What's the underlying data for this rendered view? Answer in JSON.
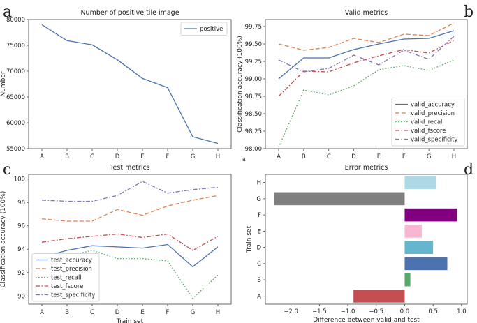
{
  "panel_letters": [
    "a",
    "b",
    "c",
    "d"
  ],
  "stray_mark": "a",
  "colors": {
    "blue": "#4a72b0",
    "orange": "#dd8452",
    "green": "#55a868",
    "red": "#c44e52",
    "purple": "#8172b3",
    "axis": "#444444"
  },
  "chart_data": [
    {
      "id": "a",
      "type": "line",
      "title": "Number of positive tile image",
      "xlabel": "",
      "ylabel": "Number",
      "categories": [
        "A",
        "B",
        "C",
        "D",
        "E",
        "F",
        "G",
        "H"
      ],
      "ylim": [
        55000,
        80000
      ],
      "yticks": [
        55000,
        60000,
        65000,
        70000,
        75000,
        80000
      ],
      "ytick_labels": [
        "55000",
        "60000",
        "65000",
        "70000",
        "75000",
        "80000"
      ],
      "legend_position": "top-right",
      "series": [
        {
          "name": "positive",
          "color": "#4a72b0",
          "dash": "solid",
          "values": [
            79000,
            75900,
            75100,
            72200,
            68600,
            66800,
            57300,
            56000
          ]
        }
      ]
    },
    {
      "id": "b",
      "type": "line",
      "title": "Valid metrics",
      "xlabel": "",
      "ylabel": "Classification accuracy (100%)",
      "categories": [
        "A",
        "B",
        "C",
        "D",
        "E",
        "F",
        "G",
        "H"
      ],
      "ylim": [
        98.0,
        99.85
      ],
      "yticks": [
        98.0,
        98.25,
        98.5,
        98.75,
        99.0,
        99.25,
        99.5,
        99.75
      ],
      "ytick_labels": [
        "98.00",
        "98.25",
        "98.50",
        "98.75",
        "99.00",
        "99.25",
        "99.50",
        "99.75"
      ],
      "legend_position": "bottom-right",
      "series": [
        {
          "name": "valid_accuracy",
          "color": "#4a72b0",
          "dash": "solid",
          "values": [
            99.0,
            99.3,
            99.3,
            99.42,
            99.5,
            99.57,
            99.58,
            99.69
          ]
        },
        {
          "name": "valid_precision",
          "color": "#dd8452",
          "dash": "dashed",
          "values": [
            99.5,
            99.41,
            99.45,
            99.58,
            99.52,
            99.64,
            99.62,
            99.8
          ]
        },
        {
          "name": "valid_recall",
          "color": "#55a868",
          "dash": "dotted",
          "values": [
            98.02,
            98.84,
            98.77,
            98.9,
            99.13,
            99.19,
            99.12,
            99.27
          ]
        },
        {
          "name": "valid_fscore",
          "color": "#c44e52",
          "dash": "dashdot",
          "values": [
            98.75,
            99.11,
            99.1,
            99.23,
            99.33,
            99.42,
            99.37,
            99.55
          ]
        },
        {
          "name": "valid_specificity",
          "color": "#8172b3",
          "dash": "dashdot",
          "values": [
            99.27,
            99.1,
            99.15,
            99.34,
            99.2,
            99.41,
            99.28,
            99.61
          ]
        }
      ]
    },
    {
      "id": "c",
      "type": "line",
      "title": "Test metrics",
      "xlabel": "Train set",
      "ylabel": "Classification accuracy (100%)",
      "categories": [
        "A",
        "B",
        "C",
        "D",
        "E",
        "F",
        "G",
        "H"
      ],
      "ylim": [
        89.3,
        100.4
      ],
      "yticks": [
        90,
        92,
        94,
        96,
        98,
        100
      ],
      "ytick_labels": [
        "90",
        "92",
        "94",
        "96",
        "98",
        "100"
      ],
      "legend_position": "bottom-left",
      "series": [
        {
          "name": "test_accuracy",
          "color": "#4a72b0",
          "dash": "solid",
          "values": [
            93.3,
            93.9,
            94.3,
            94.2,
            94.1,
            94.4,
            92.5,
            94.2
          ]
        },
        {
          "name": "test_precision",
          "color": "#dd8452",
          "dash": "dashed",
          "values": [
            96.6,
            96.4,
            96.4,
            97.4,
            96.9,
            97.7,
            98.2,
            98.6
          ]
        },
        {
          "name": "test_recall",
          "color": "#55a868",
          "dash": "dotted",
          "values": [
            92.2,
            93.4,
            93.9,
            93.2,
            93.2,
            93.0,
            89.8,
            91.8
          ]
        },
        {
          "name": "test_fscore",
          "color": "#c44e52",
          "dash": "dashdot",
          "values": [
            94.6,
            94.9,
            95.1,
            95.3,
            95.0,
            95.3,
            93.9,
            95.1
          ]
        },
        {
          "name": "test_specificity",
          "color": "#8172b3",
          "dash": "dashdot",
          "values": [
            98.2,
            98.1,
            98.1,
            98.6,
            99.8,
            98.8,
            99.1,
            99.3
          ]
        }
      ]
    },
    {
      "id": "d",
      "type": "bar",
      "orientation": "horizontal",
      "title": "Error metrics",
      "xlabel": "Difference between valid and test",
      "ylabel": "Train set",
      "categories": [
        "A",
        "B",
        "C",
        "D",
        "E",
        "F",
        "G",
        "H"
      ],
      "values": [
        -0.9,
        0.1,
        0.75,
        0.5,
        0.3,
        0.92,
        -2.3,
        0.55
      ],
      "bar_colors": [
        "#c44e52",
        "#55a868",
        "#4c72b0",
        "#64b5cd",
        "#f7b6d2",
        "#800080",
        "#7f7f7f",
        "#add8e6"
      ],
      "xlim": [
        -2.45,
        1.1
      ],
      "xticks": [
        -2.0,
        -1.5,
        -1.0,
        -0.5,
        0.0,
        0.5,
        1.0
      ],
      "xtick_labels": [
        "−2.0",
        "−1.5",
        "−1.0",
        "−0.5",
        "0.0",
        "0.5",
        "1.0"
      ]
    }
  ]
}
